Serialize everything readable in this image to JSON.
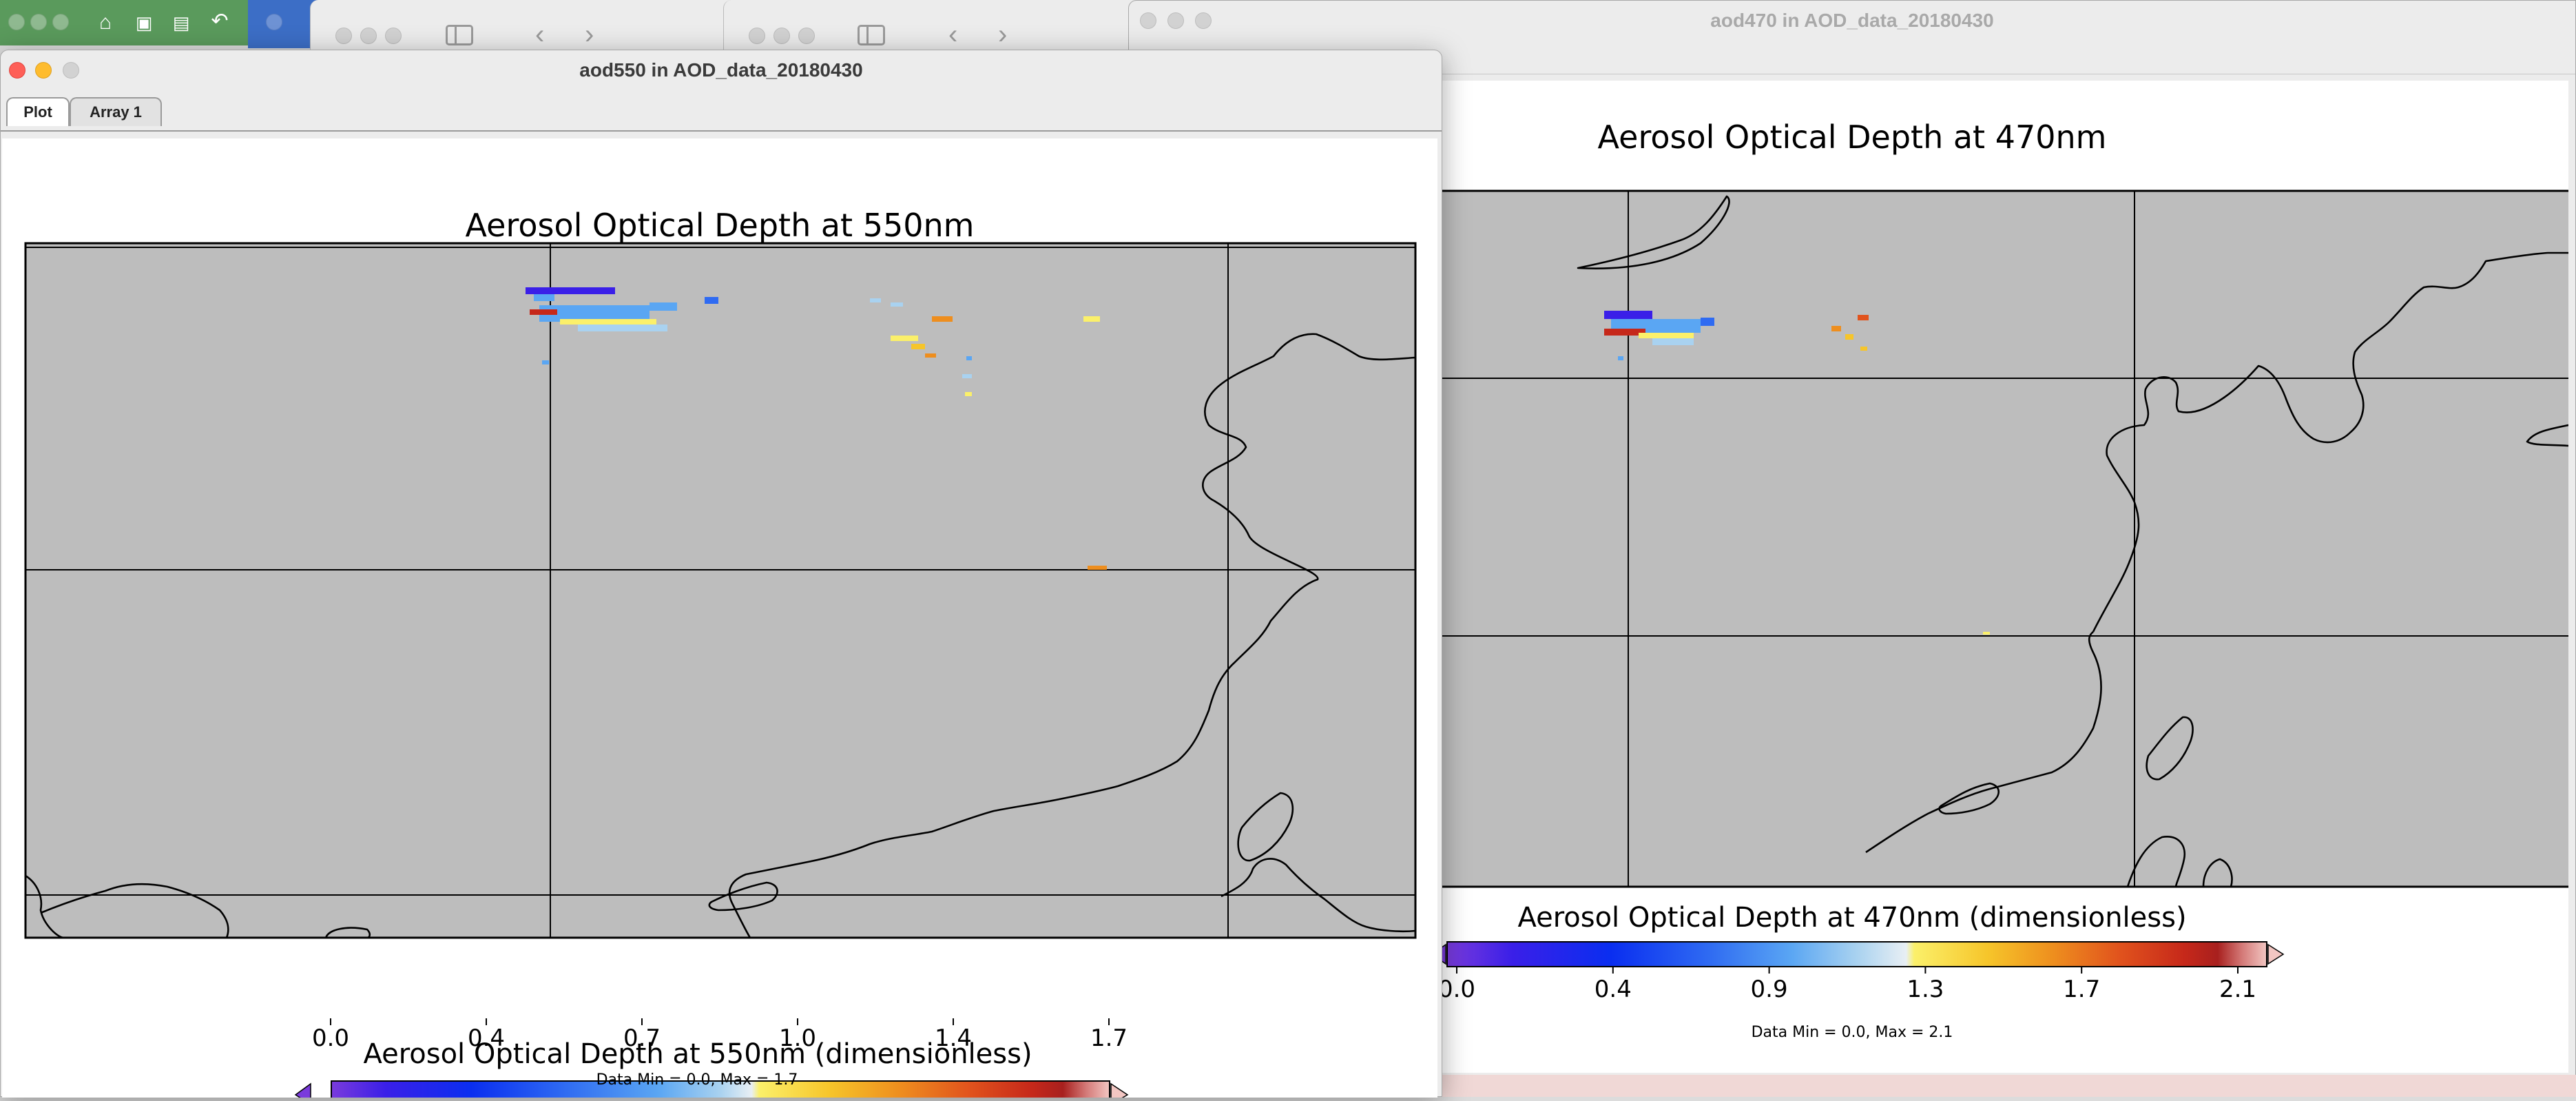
{
  "windows": {
    "left": {
      "title": "aod550 in AOD_data_20180430",
      "tabs": [
        {
          "label": "Plot",
          "active": true
        },
        {
          "label": "Array 1",
          "active": false
        }
      ],
      "plot": {
        "title": "Aerosol Optical Depth at 550nm",
        "colorbar_label": "Aerosol Optical Depth at 550nm (dimensionless)",
        "ticks": [
          "0.0",
          "0.4",
          "0.7",
          "1.0",
          "1.4",
          "1.7"
        ],
        "data_minmax": "Data Min = 0.0, Max = 1.7"
      }
    },
    "right": {
      "title": "aod470 in AOD_data_20180430",
      "plot": {
        "title": "Aerosol Optical Depth at 470nm",
        "colorbar_label": "Aerosol Optical Depth at 470nm (dimensionless)",
        "ticks": [
          "0.0",
          "0.4",
          "0.9",
          "1.3",
          "1.7",
          "2.1"
        ],
        "data_minmax": "Data Min = 0.0, Max = 2.1"
      }
    }
  },
  "colors": {
    "map_background": "#bdbdbd",
    "close": "#fe5f57",
    "minimize": "#febc2e",
    "colormap": [
      "#7a3bdc",
      "#3a1fe8",
      "#0a2ef0",
      "#2f6bf2",
      "#5aa6f3",
      "#a9d2f0",
      "#e8eff4",
      "#fbf06a",
      "#f6c52a",
      "#ee8e1e",
      "#e1531d",
      "#c6281a",
      "#a8201e",
      "#d47a78",
      "#f2c6c2"
    ]
  },
  "icons": [
    "home-icon",
    "save-icon",
    "save-as-icon",
    "undo-icon",
    "sidebar-icon",
    "back-arrow-icon",
    "forward-arrow-icon"
  ]
}
